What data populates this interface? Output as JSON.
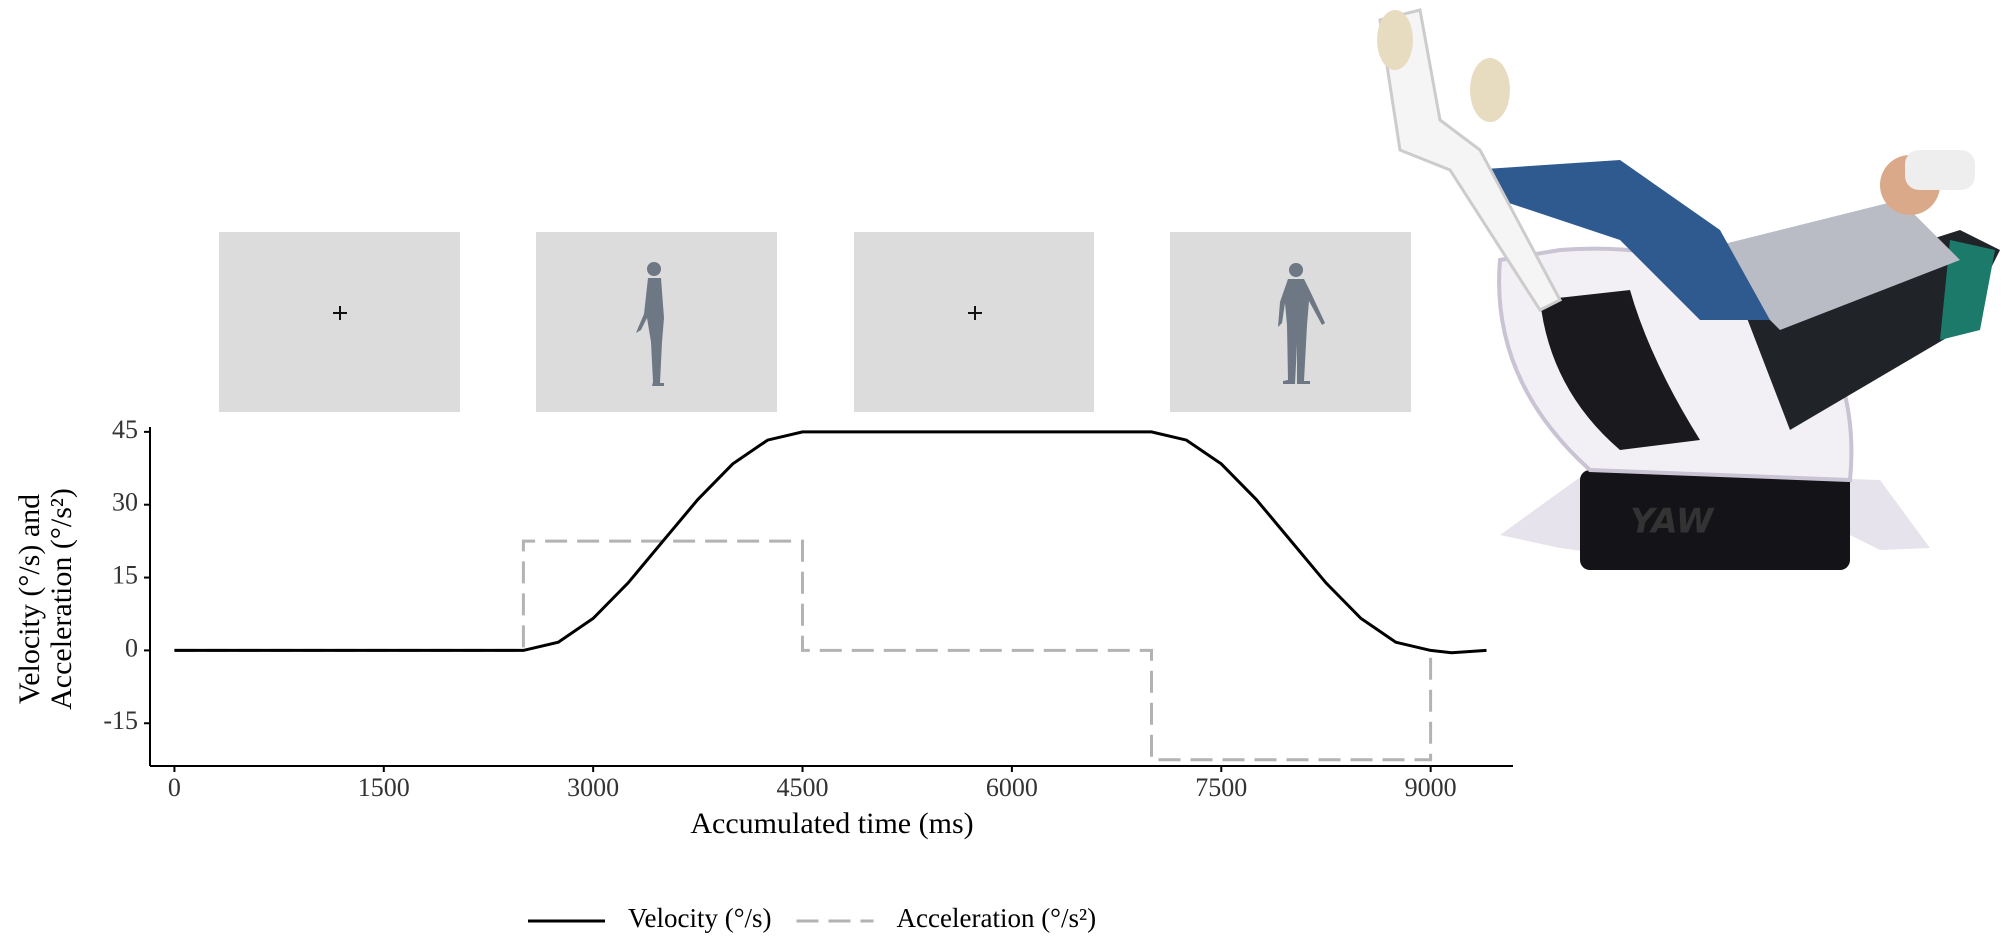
{
  "chart_data": {
    "type": "line",
    "xlabel": "Accumulated time (ms)",
    "ylabel_lines": [
      "Velocity (°/s) and",
      "Acceleration (°/s²)"
    ],
    "xlim": [
      -175,
      9590
    ],
    "xticks": [
      0,
      1500,
      3000,
      4500,
      6000,
      7500,
      9000
    ],
    "ylim": [
      -23.8,
      46
    ],
    "yticks": [
      -15,
      0,
      15,
      30,
      45
    ],
    "grid": false,
    "legend": "bottom",
    "series": [
      {
        "name": "Velocity (°/s)",
        "color": "#000000",
        "style": "solid",
        "x": [
          0,
          2500,
          2750,
          3000,
          3250,
          3500,
          3750,
          4000,
          4250,
          4500,
          7000,
          7250,
          7500,
          7750,
          8000,
          8250,
          8500,
          8750,
          9000,
          9150,
          9400
        ],
        "values": [
          0,
          0,
          1.7,
          6.6,
          13.9,
          22.5,
          31.1,
          38.4,
          43.3,
          45,
          45,
          43.3,
          38.4,
          31.1,
          22.5,
          13.9,
          6.6,
          1.7,
          0,
          -0.5,
          0
        ]
      },
      {
        "name": "Acceleration (°/s²)",
        "color": "#b3b3b3",
        "style": "dashed",
        "x": [
          0,
          2500,
          2500,
          4500,
          4500,
          7000,
          7000,
          9000,
          9000
        ],
        "values": [
          0,
          0,
          22.5,
          22.5,
          0,
          0,
          -22.5,
          -22.5,
          0
        ]
      }
    ]
  },
  "photo": {
    "logo": "YAW"
  }
}
